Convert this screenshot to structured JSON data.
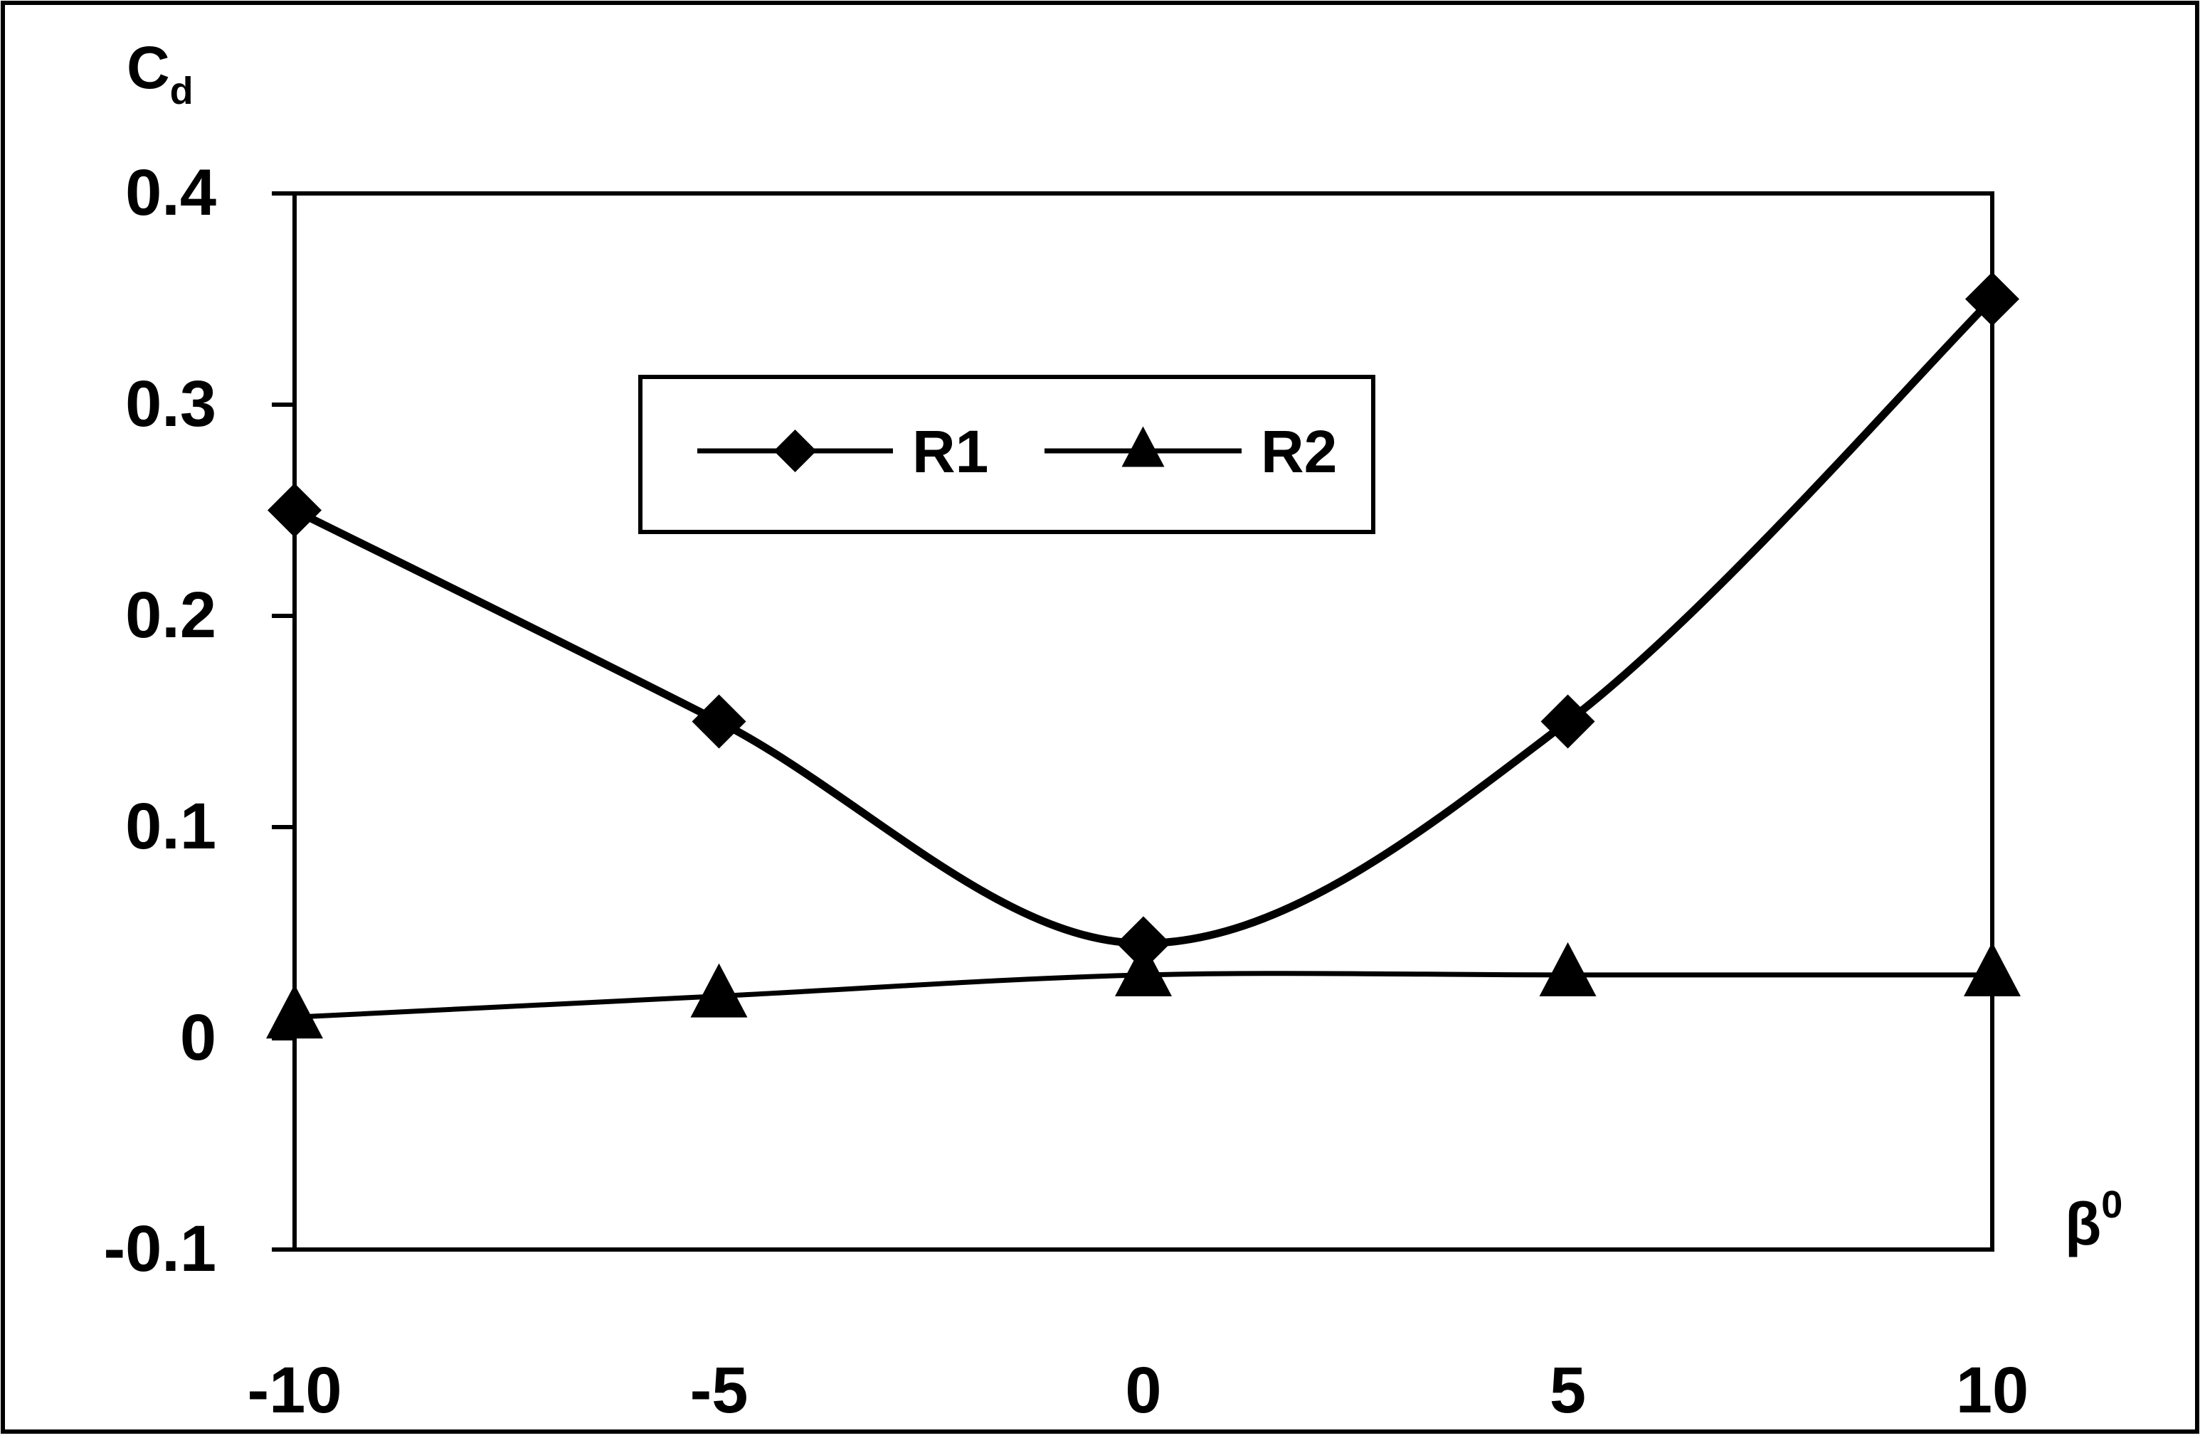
{
  "chart_data": {
    "type": "line",
    "title": "",
    "ylabel": "C",
    "ylabel_sub": "d",
    "xlabel": "β",
    "xlabel_sup": "0",
    "x": [
      -10,
      -5,
      0,
      5,
      10
    ],
    "x_tick_labels": [
      "-10",
      "-5",
      "0",
      "5",
      "10"
    ],
    "y_ticks": [
      0.4,
      0.3,
      0.2,
      0.1,
      0,
      -0.1
    ],
    "y_tick_labels": [
      "0.4",
      "0.3",
      "0.2",
      "0.1",
      "0",
      "-0.1"
    ],
    "xlim": [
      -10,
      10
    ],
    "ylim": [
      -0.1,
      0.4
    ],
    "grid": false,
    "legend_position": "upper-center",
    "series": [
      {
        "name": "R1",
        "marker": "diamond",
        "smooth": true,
        "values": [
          0.25,
          0.15,
          0.045,
          0.15,
          0.35
        ]
      },
      {
        "name": "R2",
        "marker": "triangle",
        "smooth": true,
        "values": [
          0.01,
          0.02,
          0.03,
          0.03,
          0.03
        ]
      }
    ]
  }
}
